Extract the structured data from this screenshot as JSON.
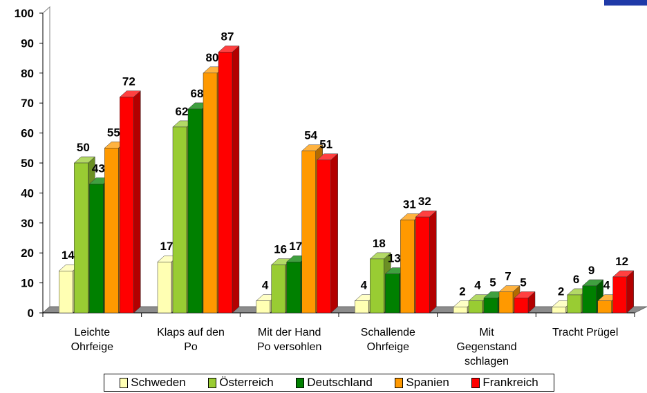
{
  "chart_data": {
    "type": "bar",
    "ylim": [
      0,
      100
    ],
    "yticks": [
      "0",
      "10",
      "20",
      "30",
      "40",
      "50",
      "60",
      "70",
      "80",
      "90",
      "100"
    ],
    "categories": [
      [
        "Leichte",
        "Ohrfeige"
      ],
      [
        "Klaps auf den",
        "Po"
      ],
      [
        "Mit der Hand",
        "Po versohlen"
      ],
      [
        "Schallende",
        "Ohrfeige"
      ],
      [
        "Mit",
        "Gegenstand",
        "schlagen"
      ],
      [
        "Tracht Prügel"
      ]
    ],
    "series": [
      {
        "name": "Schweden",
        "color": "#ffffb3",
        "values": [
          14,
          17,
          4,
          4,
          2,
          2
        ]
      },
      {
        "name": "Österreich",
        "color": "#99cc33",
        "values": [
          50,
          62,
          16,
          18,
          4,
          6
        ]
      },
      {
        "name": "Deutschland",
        "color": "#008000",
        "values": [
          43,
          68,
          17,
          13,
          5,
          9
        ]
      },
      {
        "name": "Spanien",
        "color": "#ff9900",
        "values": [
          55,
          80,
          54,
          31,
          7,
          4
        ]
      },
      {
        "name": "Frankreich",
        "color": "#ff0000",
        "values": [
          72,
          87,
          51,
          32,
          5,
          12
        ]
      }
    ],
    "legend_position": "bottom",
    "style": "3d-column"
  }
}
